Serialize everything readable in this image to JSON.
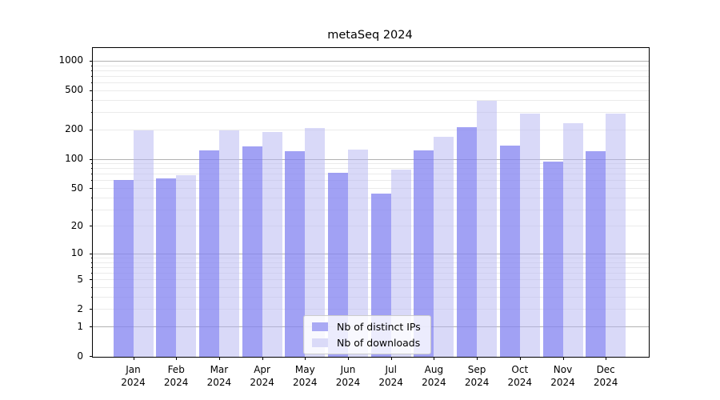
{
  "title": "metaSeq 2024",
  "chart_data": {
    "type": "bar",
    "title": "metaSeq 2024",
    "categories": [
      "Jan 2024",
      "Feb 2024",
      "Mar 2024",
      "Apr 2024",
      "May 2024",
      "Jun 2024",
      "Jul 2024",
      "Aug 2024",
      "Sep 2024",
      "Oct 2024",
      "Nov 2024",
      "Dec 2024"
    ],
    "series": [
      {
        "name": "Nb of distinct IPs",
        "values": [
          60,
          63,
          121,
          135,
          120,
          72,
          44,
          122,
          210,
          136,
          94,
          120
        ]
      },
      {
        "name": "Nb of downloads",
        "values": [
          195,
          68,
          195,
          188,
          205,
          125,
          78,
          169,
          390,
          290,
          230,
          290
        ]
      }
    ],
    "xlabel": "",
    "ylabel": "",
    "yscale": "log(value+1)",
    "yticks": [
      0,
      1,
      2,
      5,
      10,
      20,
      50,
      100,
      200,
      500,
      1000
    ],
    "ylim": [
      0,
      1350
    ],
    "grid": "horizontal major and minor gridlines",
    "legend_position": "inside bottom-center"
  },
  "legend": {
    "items": [
      {
        "label": "Nb of distinct IPs",
        "color": "#a9a9f4"
      },
      {
        "label": "Nb of downloads",
        "color": "#dadaf8"
      }
    ]
  },
  "colors": {
    "bar_distinct_ips": "#8282f0",
    "bar_distinct_ips_alpha": 0.75,
    "bar_downloads": "#b4b4f2",
    "bar_downloads_alpha": 0.5,
    "gridline_major": "#b2b2b2",
    "gridline_minor": "#ebebeb",
    "axis": "#000000",
    "background": "#ffffff"
  }
}
